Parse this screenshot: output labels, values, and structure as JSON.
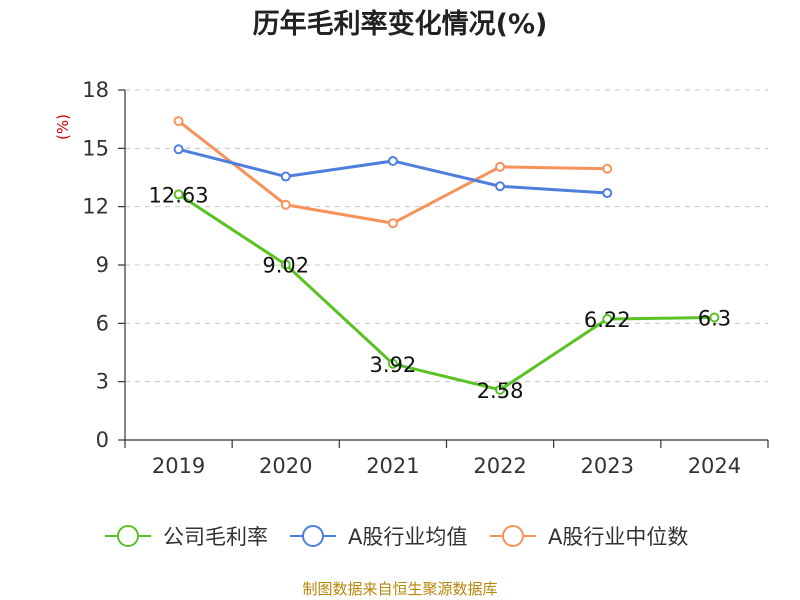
{
  "chart_data": {
    "type": "line",
    "title": "历年毛利率变化情况(%)",
    "ylabel": "(%)",
    "xlabel": "",
    "categories": [
      "2019",
      "2020",
      "2021",
      "2022",
      "2023",
      "2024"
    ],
    "ylim": [
      0,
      18
    ],
    "yticks": [
      0,
      3,
      6,
      9,
      12,
      15,
      18
    ],
    "grid": true,
    "legend_position": "bottom",
    "series": [
      {
        "name": "公司毛利率",
        "color": "#5bc225",
        "values": [
          12.63,
          9.02,
          3.92,
          2.58,
          6.22,
          6.3
        ],
        "labels": [
          "12.63",
          "9.02",
          "3.92",
          "2.58",
          "6.22",
          "6.3"
        ],
        "show_labels": true
      },
      {
        "name": "A股行业均值",
        "color": "#4f7fdc",
        "values": [
          14.95,
          13.55,
          14.35,
          13.05,
          12.7,
          null
        ],
        "show_labels": false
      },
      {
        "name": "A股行业中位数",
        "color": "#f6925a",
        "values": [
          16.4,
          12.1,
          11.15,
          14.05,
          13.95,
          null
        ],
        "show_labels": false
      }
    ],
    "source": "制图数据来自恒生聚源数据库"
  }
}
